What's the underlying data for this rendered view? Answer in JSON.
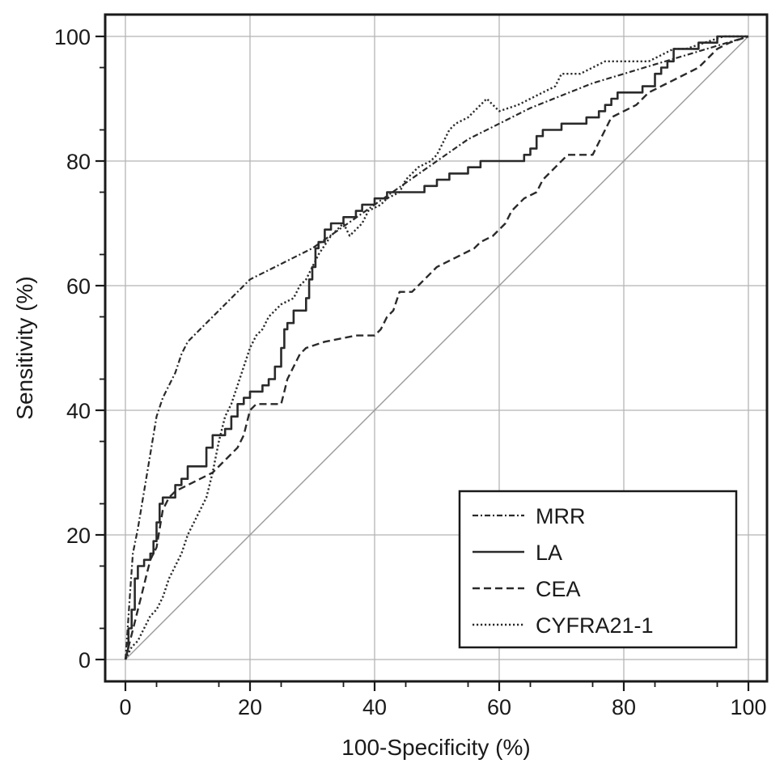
{
  "chart_data": {
    "type": "line",
    "title": "",
    "xlabel": "100-Specificity (%)",
    "ylabel": "Sensitivity (%)",
    "xlim": [
      0,
      100
    ],
    "ylim": [
      0,
      100
    ],
    "x_ticks": [
      "0",
      "20",
      "40",
      "60",
      "80",
      "100"
    ],
    "y_ticks": [
      "0",
      "20",
      "40",
      "60",
      "80",
      "100"
    ],
    "grid": true,
    "reference_line": [
      [
        0,
        0
      ],
      [
        100,
        100
      ]
    ],
    "legend_position": "bottom-right",
    "series": [
      {
        "name": "MRR",
        "style": "dash-dot",
        "points": [
          [
            0,
            0
          ],
          [
            0.3,
            4
          ],
          [
            0.7,
            10
          ],
          [
            1.2,
            17
          ],
          [
            2,
            21
          ],
          [
            3,
            27
          ],
          [
            4,
            33
          ],
          [
            5,
            39
          ],
          [
            6,
            42
          ],
          [
            7,
            44
          ],
          [
            8,
            46
          ],
          [
            9,
            49
          ],
          [
            10,
            51
          ],
          [
            12,
            53
          ],
          [
            14,
            55
          ],
          [
            16,
            57
          ],
          [
            18,
            59
          ],
          [
            20,
            61
          ],
          [
            25,
            63.5
          ],
          [
            30,
            66
          ],
          [
            35,
            69.5
          ],
          [
            40,
            73
          ],
          [
            45,
            76.5
          ],
          [
            50,
            80
          ],
          [
            55,
            83.5
          ],
          [
            60,
            86
          ],
          [
            65,
            88.5
          ],
          [
            70,
            90.5
          ],
          [
            75,
            92.5
          ],
          [
            80,
            94
          ],
          [
            85,
            95.5
          ],
          [
            90,
            97
          ],
          [
            95,
            98.5
          ],
          [
            100,
            100
          ]
        ]
      },
      {
        "name": "LA",
        "style": "solid",
        "points": [
          [
            0,
            0
          ],
          [
            0.5,
            2
          ],
          [
            0.5,
            5
          ],
          [
            1,
            5
          ],
          [
            1,
            8
          ],
          [
            1.5,
            8
          ],
          [
            1.5,
            13
          ],
          [
            2,
            13
          ],
          [
            2,
            15
          ],
          [
            3,
            15
          ],
          [
            3,
            16
          ],
          [
            4,
            16
          ],
          [
            4,
            17
          ],
          [
            4.5,
            17
          ],
          [
            4.5,
            19
          ],
          [
            5,
            19
          ],
          [
            5,
            22
          ],
          [
            5.5,
            22
          ],
          [
            5.5,
            25
          ],
          [
            6,
            25
          ],
          [
            6,
            26
          ],
          [
            8,
            26
          ],
          [
            8,
            28
          ],
          [
            9,
            28
          ],
          [
            9,
            29
          ],
          [
            10,
            29
          ],
          [
            10,
            31
          ],
          [
            13,
            31
          ],
          [
            13,
            34
          ],
          [
            14,
            34
          ],
          [
            14,
            36
          ],
          [
            16,
            36
          ],
          [
            16,
            37
          ],
          [
            17,
            37
          ],
          [
            17,
            39
          ],
          [
            18,
            39
          ],
          [
            18,
            41
          ],
          [
            19,
            41
          ],
          [
            19,
            42
          ],
          [
            20,
            42
          ],
          [
            20,
            43
          ],
          [
            22,
            43
          ],
          [
            22,
            44
          ],
          [
            23,
            44
          ],
          [
            23,
            45
          ],
          [
            24,
            45
          ],
          [
            24,
            47
          ],
          [
            25,
            47
          ],
          [
            25,
            50
          ],
          [
            25.5,
            50
          ],
          [
            25.5,
            53
          ],
          [
            26,
            53
          ],
          [
            26,
            54
          ],
          [
            27,
            54
          ],
          [
            27,
            56
          ],
          [
            29,
            56
          ],
          [
            29,
            58
          ],
          [
            29.5,
            58
          ],
          [
            29.5,
            61
          ],
          [
            30,
            61
          ],
          [
            30,
            63
          ],
          [
            30.5,
            63
          ],
          [
            30.5,
            66
          ],
          [
            31,
            66
          ],
          [
            31,
            67
          ],
          [
            32,
            67
          ],
          [
            32,
            69
          ],
          [
            33,
            69
          ],
          [
            33,
            70
          ],
          [
            35,
            70
          ],
          [
            35,
            71
          ],
          [
            37,
            71
          ],
          [
            37,
            72
          ],
          [
            38,
            72
          ],
          [
            38,
            73
          ],
          [
            40,
            73
          ],
          [
            40,
            74
          ],
          [
            42,
            74
          ],
          [
            42,
            75
          ],
          [
            48,
            75
          ],
          [
            48,
            76
          ],
          [
            50,
            76
          ],
          [
            50,
            77
          ],
          [
            52,
            77
          ],
          [
            52,
            78
          ],
          [
            55,
            78
          ],
          [
            55,
            79
          ],
          [
            57,
            79
          ],
          [
            57,
            80
          ],
          [
            64,
            80
          ],
          [
            64,
            81
          ],
          [
            65,
            81
          ],
          [
            65,
            82
          ],
          [
            66,
            82
          ],
          [
            66,
            84
          ],
          [
            67,
            84
          ],
          [
            67,
            85
          ],
          [
            70,
            85
          ],
          [
            70,
            86
          ],
          [
            74,
            86
          ],
          [
            74,
            87
          ],
          [
            76,
            87
          ],
          [
            76,
            88
          ],
          [
            77,
            88
          ],
          [
            77,
            89
          ],
          [
            78,
            89
          ],
          [
            78,
            90
          ],
          [
            79,
            90
          ],
          [
            79,
            91
          ],
          [
            83,
            91
          ],
          [
            83,
            92
          ],
          [
            85,
            92
          ],
          [
            85,
            94
          ],
          [
            86,
            94
          ],
          [
            86,
            95
          ],
          [
            87,
            95
          ],
          [
            87,
            96
          ],
          [
            88,
            96
          ],
          [
            88,
            98
          ],
          [
            92,
            98
          ],
          [
            92,
            99
          ],
          [
            95,
            99
          ],
          [
            95,
            100
          ],
          [
            100,
            100
          ]
        ]
      },
      {
        "name": "CEA",
        "style": "dashed",
        "points": [
          [
            0,
            0
          ],
          [
            0.5,
            2
          ],
          [
            1,
            4
          ],
          [
            1.5,
            6
          ],
          [
            2,
            8
          ],
          [
            2.5,
            10
          ],
          [
            3,
            12
          ],
          [
            3.5,
            14
          ],
          [
            4,
            16
          ],
          [
            5,
            18
          ],
          [
            6,
            24
          ],
          [
            7,
            26
          ],
          [
            8,
            27
          ],
          [
            10,
            28
          ],
          [
            12,
            29
          ],
          [
            14,
            30
          ],
          [
            16,
            32
          ],
          [
            18,
            34
          ],
          [
            19,
            36
          ],
          [
            19.5,
            38
          ],
          [
            20,
            40
          ],
          [
            21,
            41
          ],
          [
            25,
            41
          ],
          [
            25.5,
            43
          ],
          [
            26,
            45
          ],
          [
            27,
            47
          ],
          [
            28,
            49
          ],
          [
            29,
            50
          ],
          [
            32,
            51
          ],
          [
            37,
            52
          ],
          [
            40,
            52
          ],
          [
            41,
            53
          ],
          [
            42,
            55
          ],
          [
            43,
            56
          ],
          [
            44,
            59
          ],
          [
            46,
            59
          ],
          [
            47,
            60
          ],
          [
            48,
            61
          ],
          [
            50,
            63
          ],
          [
            52,
            64
          ],
          [
            54,
            65
          ],
          [
            56,
            66
          ],
          [
            57,
            67
          ],
          [
            59,
            68
          ],
          [
            60,
            69
          ],
          [
            61,
            70
          ],
          [
            62,
            72
          ],
          [
            63,
            73
          ],
          [
            64,
            74
          ],
          [
            66,
            75
          ],
          [
            67,
            77
          ],
          [
            69,
            79
          ],
          [
            70,
            80
          ],
          [
            71,
            81
          ],
          [
            75,
            81
          ],
          [
            76,
            83
          ],
          [
            77,
            85
          ],
          [
            78,
            87
          ],
          [
            80,
            88
          ],
          [
            82,
            89
          ],
          [
            84,
            91
          ],
          [
            86,
            92
          ],
          [
            88,
            93
          ],
          [
            90,
            94
          ],
          [
            92,
            95
          ],
          [
            93,
            96
          ],
          [
            94,
            97
          ],
          [
            95,
            98
          ],
          [
            97,
            99
          ],
          [
            100,
            100
          ]
        ]
      },
      {
        "name": "CYFRA21-1",
        "style": "dotted",
        "points": [
          [
            0,
            0
          ],
          [
            0.5,
            1
          ],
          [
            1,
            2
          ],
          [
            2,
            3
          ],
          [
            3,
            5
          ],
          [
            4,
            7
          ],
          [
            5,
            8
          ],
          [
            6,
            10
          ],
          [
            7,
            13
          ],
          [
            8,
            15
          ],
          [
            9,
            17
          ],
          [
            10,
            20
          ],
          [
            11,
            22
          ],
          [
            12,
            24
          ],
          [
            13,
            26
          ],
          [
            14,
            30
          ],
          [
            15,
            35
          ],
          [
            16,
            39
          ],
          [
            17,
            41
          ],
          [
            18,
            44
          ],
          [
            19,
            47
          ],
          [
            20,
            50
          ],
          [
            21,
            52
          ],
          [
            22,
            53
          ],
          [
            23,
            55
          ],
          [
            24,
            56
          ],
          [
            25,
            57
          ],
          [
            27,
            58
          ],
          [
            28,
            60
          ],
          [
            29,
            61
          ],
          [
            30,
            63
          ],
          [
            31,
            65
          ],
          [
            33,
            68
          ],
          [
            35,
            70
          ],
          [
            36,
            68
          ],
          [
            38,
            70
          ],
          [
            39,
            72
          ],
          [
            41,
            73
          ],
          [
            42,
            74
          ],
          [
            44,
            75
          ],
          [
            45,
            77
          ],
          [
            47,
            79
          ],
          [
            49,
            80
          ],
          [
            50,
            81
          ],
          [
            51,
            83
          ],
          [
            52,
            85
          ],
          [
            53,
            86
          ],
          [
            55,
            87
          ],
          [
            56,
            88
          ],
          [
            57,
            89
          ],
          [
            58,
            90
          ],
          [
            60,
            88
          ],
          [
            63,
            89
          ],
          [
            65,
            90
          ],
          [
            67,
            91
          ],
          [
            69,
            92
          ],
          [
            70,
            94
          ],
          [
            73,
            94
          ],
          [
            75,
            95
          ],
          [
            77,
            96
          ],
          [
            80,
            96
          ],
          [
            84,
            96
          ],
          [
            86,
            97
          ],
          [
            88,
            98
          ],
          [
            90,
            98
          ],
          [
            93,
            99
          ],
          [
            96,
            100
          ],
          [
            100,
            100
          ]
        ]
      }
    ]
  }
}
